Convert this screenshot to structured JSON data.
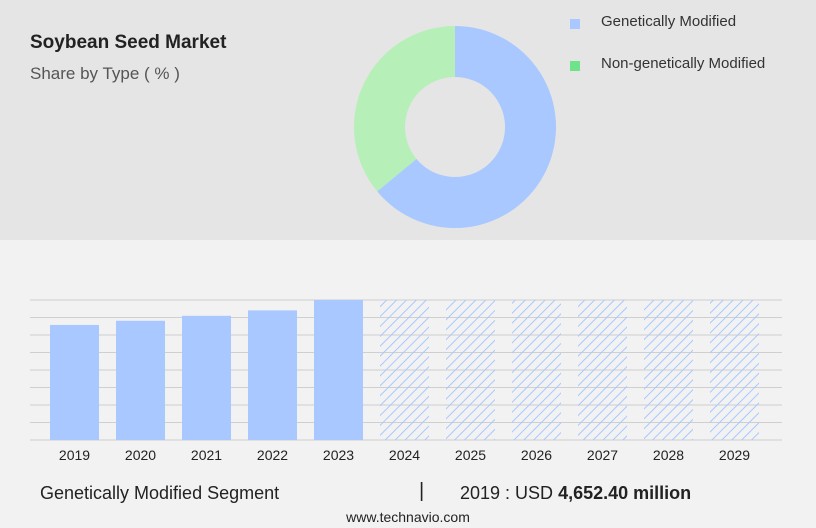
{
  "title": "Soybean Seed Market",
  "subtitle": "Share by Type ( % )",
  "colors": {
    "top_bg": "#e5e5e5",
    "bottom_bg": "#f2f2f2",
    "bar": "#a8c8ff",
    "hatch": "#a8c8ff",
    "gm": "#a8c8ff",
    "non_gm": "#b6f0b8",
    "non_gm_legend": "#6ee38a"
  },
  "chart_data": [
    {
      "type": "pie",
      "donut": true,
      "legend_position": "right",
      "slices": [
        {
          "label": "Genetically Modified",
          "value": 64
        },
        {
          "label": "Non-genetically Modified",
          "value": 36
        }
      ]
    },
    {
      "type": "bar",
      "categories": [
        "2019",
        "2020",
        "2021",
        "2022",
        "2023",
        "2024",
        "2025",
        "2026",
        "2027",
        "2028",
        "2029"
      ],
      "values": [
        4652.4,
        4820,
        5020,
        5240,
        5660,
        5660,
        5660,
        5660,
        5660,
        5660,
        5660
      ],
      "forecast_from_index": 5,
      "grid": true,
      "ylim": [
        0,
        5660
      ]
    }
  ],
  "footer": {
    "segment": "Genetically Modified Segment",
    "separator": "|",
    "year_currency": "2019 : USD",
    "value": "4,652.40 million"
  },
  "source": "www.technavio.com"
}
